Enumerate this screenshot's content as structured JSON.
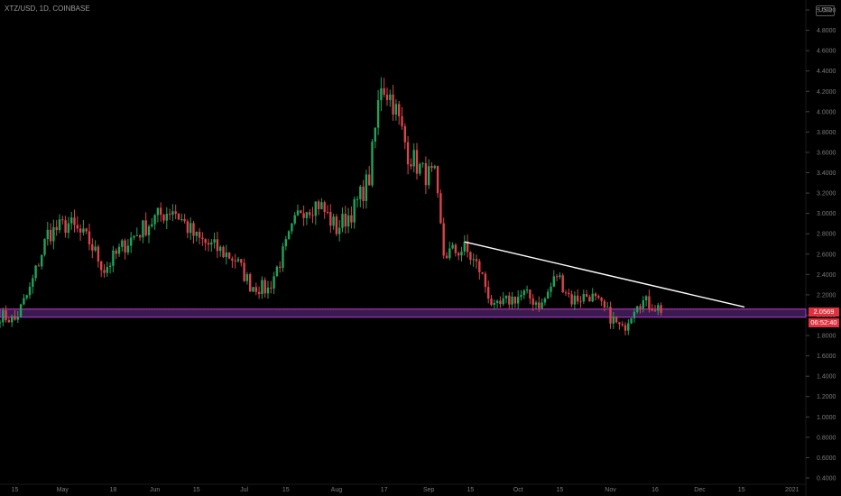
{
  "symbol_title": "XTZ/USD, 1D, COINBASE",
  "currency_badge": "USD",
  "price_label": "2.0569",
  "timer_label": "06:52:40",
  "colors": {
    "background": "#000000",
    "up": "#1fa35a",
    "down": "#d9434a",
    "trendline": "#ffffff",
    "zone_fill": "#3b1a50",
    "zone_border": "#b13bd6",
    "price_tag": "#e0313f",
    "axis_text": "#7a7a7a"
  },
  "chart_data": {
    "type": "candlestick",
    "title": "XTZ/USD, 1D, COINBASE",
    "xlabel": "",
    "ylabel": "",
    "ylim": [
      0.4,
      5.0
    ],
    "y_ticks": [
      "5.0000",
      "4.8000",
      "4.6000",
      "4.4000",
      "4.2000",
      "4.0000",
      "3.8000",
      "3.6000",
      "3.4000",
      "3.2000",
      "3.0000",
      "2.8000",
      "2.6000",
      "2.4000",
      "2.2000",
      "2.0000",
      "1.8000",
      "1.6000",
      "1.4000",
      "1.2000",
      "1.0000",
      "0.8000",
      "0.6000",
      "0.4000"
    ],
    "x_ticks": [
      "15",
      "May",
      "18",
      "Jun",
      "15",
      "Jul",
      "15",
      "Aug",
      "17",
      "Sep",
      "15",
      "Oct",
      "15",
      "Nov",
      "16",
      "Dec",
      "15",
      "2021"
    ],
    "price_path": [
      {
        "date": "2020-04-10",
        "price": 2.0
      },
      {
        "date": "2020-04-15",
        "price": 1.95
      },
      {
        "date": "2020-04-20",
        "price": 2.25
      },
      {
        "date": "2020-04-26",
        "price": 2.8
      },
      {
        "date": "2020-05-03",
        "price": 2.9
      },
      {
        "date": "2020-05-10",
        "price": 2.72
      },
      {
        "date": "2020-05-15",
        "price": 2.45
      },
      {
        "date": "2020-05-22",
        "price": 2.7
      },
      {
        "date": "2020-06-01",
        "price": 2.95
      },
      {
        "date": "2020-06-07",
        "price": 3.05
      },
      {
        "date": "2020-06-15",
        "price": 2.75
      },
      {
        "date": "2020-06-22",
        "price": 2.65
      },
      {
        "date": "2020-06-28",
        "price": 2.55
      },
      {
        "date": "2020-07-03",
        "price": 2.3
      },
      {
        "date": "2020-07-09",
        "price": 2.25
      },
      {
        "date": "2020-07-14",
        "price": 2.6
      },
      {
        "date": "2020-07-20",
        "price": 3.05
      },
      {
        "date": "2020-07-26",
        "price": 3.1
      },
      {
        "date": "2020-08-01",
        "price": 2.85
      },
      {
        "date": "2020-08-07",
        "price": 3.05
      },
      {
        "date": "2020-08-12",
        "price": 3.35
      },
      {
        "date": "2020-08-16",
        "price": 4.3
      },
      {
        "date": "2020-08-20",
        "price": 4.1
      },
      {
        "date": "2020-08-25",
        "price": 3.6
      },
      {
        "date": "2020-08-30",
        "price": 3.4
      },
      {
        "date": "2020-09-03",
        "price": 3.35
      },
      {
        "date": "2020-09-06",
        "price": 2.6
      },
      {
        "date": "2020-09-13",
        "price": 2.65
      },
      {
        "date": "2020-09-18",
        "price": 2.45
      },
      {
        "date": "2020-09-23",
        "price": 2.05
      },
      {
        "date": "2020-09-28",
        "price": 2.15
      },
      {
        "date": "2020-10-03",
        "price": 2.2
      },
      {
        "date": "2020-10-09",
        "price": 2.1
      },
      {
        "date": "2020-10-14",
        "price": 2.4
      },
      {
        "date": "2020-10-19",
        "price": 2.15
      },
      {
        "date": "2020-10-25",
        "price": 2.2
      },
      {
        "date": "2020-10-30",
        "price": 2.05
      },
      {
        "date": "2020-11-05",
        "price": 1.85
      },
      {
        "date": "2020-11-10",
        "price": 2.15
      },
      {
        "date": "2020-11-15",
        "price": 2.1
      },
      {
        "date": "2020-11-18",
        "price": 2.06
      }
    ],
    "trendline": {
      "from": {
        "date": "2020-09-13",
        "price": 2.72
      },
      "to": {
        "date": "2020-12-16",
        "price": 2.08
      }
    },
    "zone": {
      "from_date": "2020-04-10",
      "to_date": "2021-01-20",
      "low": 1.98,
      "high": 2.06
    },
    "last_price": 2.0569
  }
}
